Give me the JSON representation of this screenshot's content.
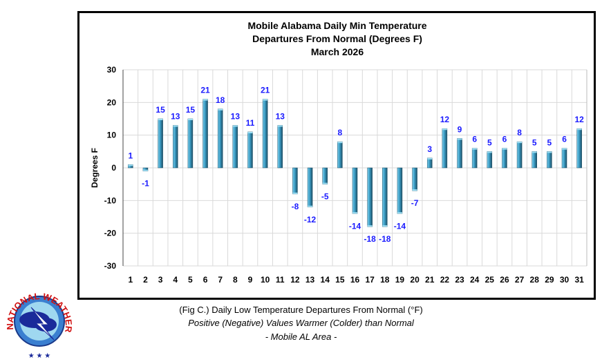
{
  "chart_data": {
    "type": "bar",
    "title": [
      "Mobile Alabama Daily Min Temperature",
      "Departures From Normal (Degrees F)",
      "March 2026"
    ],
    "xlabel": "",
    "ylabel": "Degrees F",
    "ylim": [
      -30,
      30
    ],
    "yticks": [
      30,
      20,
      10,
      0,
      -10,
      -20,
      -30
    ],
    "grid": true,
    "categories": [
      "1",
      "2",
      "3",
      "4",
      "5",
      "6",
      "7",
      "8",
      "9",
      "10",
      "11",
      "12",
      "13",
      "14",
      "15",
      "16",
      "17",
      "18",
      "19",
      "20",
      "21",
      "22",
      "23",
      "24",
      "25",
      "26",
      "27",
      "28",
      "29",
      "30",
      "31"
    ],
    "values": [
      1,
      -1,
      15,
      13,
      15,
      21,
      18,
      13,
      11,
      21,
      13,
      -8,
      -12,
      -5,
      8,
      -14,
      -18,
      -18,
      -14,
      -7,
      3,
      12,
      9,
      6,
      5,
      6,
      8,
      5,
      5,
      6,
      12
    ],
    "bar_color": "#3a9cc4",
    "label_color": "#1a1aff"
  },
  "caption": {
    "line1": "(Fig C.) Daily Low Temperature Departures From Normal (°F)",
    "line2": "Positive (Negative) Values Warmer (Colder) than Normal",
    "line3": "- Mobile AL Area -"
  },
  "logo": {
    "text": "NATIONAL WEATHER SERVICE"
  }
}
